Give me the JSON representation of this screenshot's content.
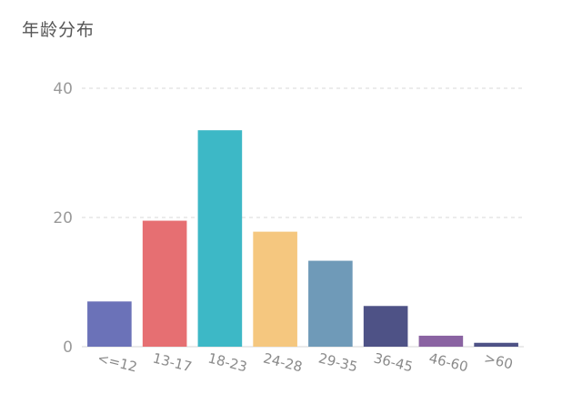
{
  "chart_data": {
    "type": "bar",
    "title": "年龄分布",
    "xlabel": "",
    "ylabel": "",
    "categories": [
      "<=12",
      "13-17",
      "18-23",
      "24-28",
      "29-35",
      "36-45",
      "46-60",
      ">60"
    ],
    "values": [
      7,
      19.5,
      33.5,
      17.8,
      13.3,
      6.3,
      1.7,
      0.6
    ],
    "colors": [
      "#6b72b8",
      "#e66f72",
      "#3db8c6",
      "#f5c77f",
      "#6f9ab8",
      "#4e5286",
      "#8a63a2",
      "#4e5286"
    ],
    "ylim": [
      0,
      40
    ],
    "yticks": [
      0,
      20,
      40
    ],
    "grid": true,
    "legend": "none"
  }
}
